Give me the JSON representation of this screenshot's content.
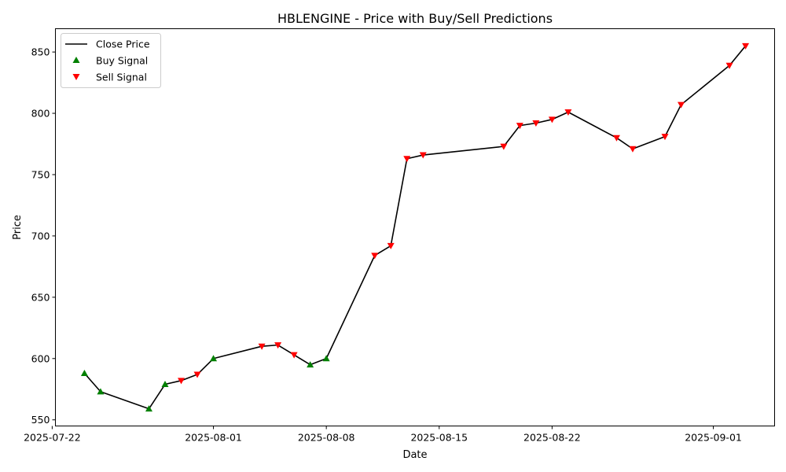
{
  "chart_data": {
    "type": "line",
    "title": "HBLENGINE - Price with Buy/Sell Predictions",
    "xlabel": "Date",
    "ylabel": "Price",
    "xlim": [
      "2025-07-22",
      "2025-09-04"
    ],
    "ylim": [
      545,
      869
    ],
    "x_ticks": [
      "2025-07-22",
      "2025-08-01",
      "2025-08-08",
      "2025-08-15",
      "2025-08-22",
      "2025-09-01"
    ],
    "y_ticks": [
      550,
      600,
      650,
      700,
      750,
      800,
      850
    ],
    "legend_position": "upper-left",
    "grid": false,
    "series": [
      {
        "name": "Close Price",
        "color": "#000000",
        "style": "line",
        "points": [
          {
            "x": "2025-07-24",
            "y": 588
          },
          {
            "x": "2025-07-25",
            "y": 573
          },
          {
            "x": "2025-07-28",
            "y": 559
          },
          {
            "x": "2025-07-29",
            "y": 579
          },
          {
            "x": "2025-07-30",
            "y": 582
          },
          {
            "x": "2025-07-31",
            "y": 587
          },
          {
            "x": "2025-08-01",
            "y": 600
          },
          {
            "x": "2025-08-04",
            "y": 610
          },
          {
            "x": "2025-08-05",
            "y": 611
          },
          {
            "x": "2025-08-06",
            "y": 603
          },
          {
            "x": "2025-08-07",
            "y": 595
          },
          {
            "x": "2025-08-08",
            "y": 600
          },
          {
            "x": "2025-08-11",
            "y": 684
          },
          {
            "x": "2025-08-12",
            "y": 692
          },
          {
            "x": "2025-08-13",
            "y": 763
          },
          {
            "x": "2025-08-14",
            "y": 766
          },
          {
            "x": "2025-08-19",
            "y": 773
          },
          {
            "x": "2025-08-20",
            "y": 790
          },
          {
            "x": "2025-08-21",
            "y": 792
          },
          {
            "x": "2025-08-22",
            "y": 795
          },
          {
            "x": "2025-08-23",
            "y": 801
          },
          {
            "x": "2025-08-26",
            "y": 780
          },
          {
            "x": "2025-08-27",
            "y": 771
          },
          {
            "x": "2025-08-29",
            "y": 781
          },
          {
            "x": "2025-08-30",
            "y": 807
          },
          {
            "x": "2025-09-02",
            "y": 839
          },
          {
            "x": "2025-09-03",
            "y": 855
          }
        ]
      },
      {
        "name": "Buy Signal",
        "color": "#008000",
        "marker": "triangle-up",
        "points": [
          {
            "x": "2025-07-24",
            "y": 588
          },
          {
            "x": "2025-07-25",
            "y": 573
          },
          {
            "x": "2025-07-28",
            "y": 559
          },
          {
            "x": "2025-07-29",
            "y": 579
          },
          {
            "x": "2025-08-01",
            "y": 600
          },
          {
            "x": "2025-08-07",
            "y": 595
          },
          {
            "x": "2025-08-08",
            "y": 600
          }
        ]
      },
      {
        "name": "Sell Signal",
        "color": "#ff0000",
        "marker": "triangle-down",
        "points": [
          {
            "x": "2025-07-30",
            "y": 582
          },
          {
            "x": "2025-07-31",
            "y": 587
          },
          {
            "x": "2025-08-04",
            "y": 610
          },
          {
            "x": "2025-08-05",
            "y": 611
          },
          {
            "x": "2025-08-06",
            "y": 603
          },
          {
            "x": "2025-08-11",
            "y": 684
          },
          {
            "x": "2025-08-12",
            "y": 692
          },
          {
            "x": "2025-08-13",
            "y": 763
          },
          {
            "x": "2025-08-14",
            "y": 766
          },
          {
            "x": "2025-08-19",
            "y": 773
          },
          {
            "x": "2025-08-20",
            "y": 790
          },
          {
            "x": "2025-08-21",
            "y": 792
          },
          {
            "x": "2025-08-22",
            "y": 795
          },
          {
            "x": "2025-08-23",
            "y": 801
          },
          {
            "x": "2025-08-26",
            "y": 780
          },
          {
            "x": "2025-08-27",
            "y": 771
          },
          {
            "x": "2025-08-29",
            "y": 781
          },
          {
            "x": "2025-08-30",
            "y": 807
          },
          {
            "x": "2025-09-02",
            "y": 839
          },
          {
            "x": "2025-09-03",
            "y": 855
          }
        ]
      }
    ]
  }
}
